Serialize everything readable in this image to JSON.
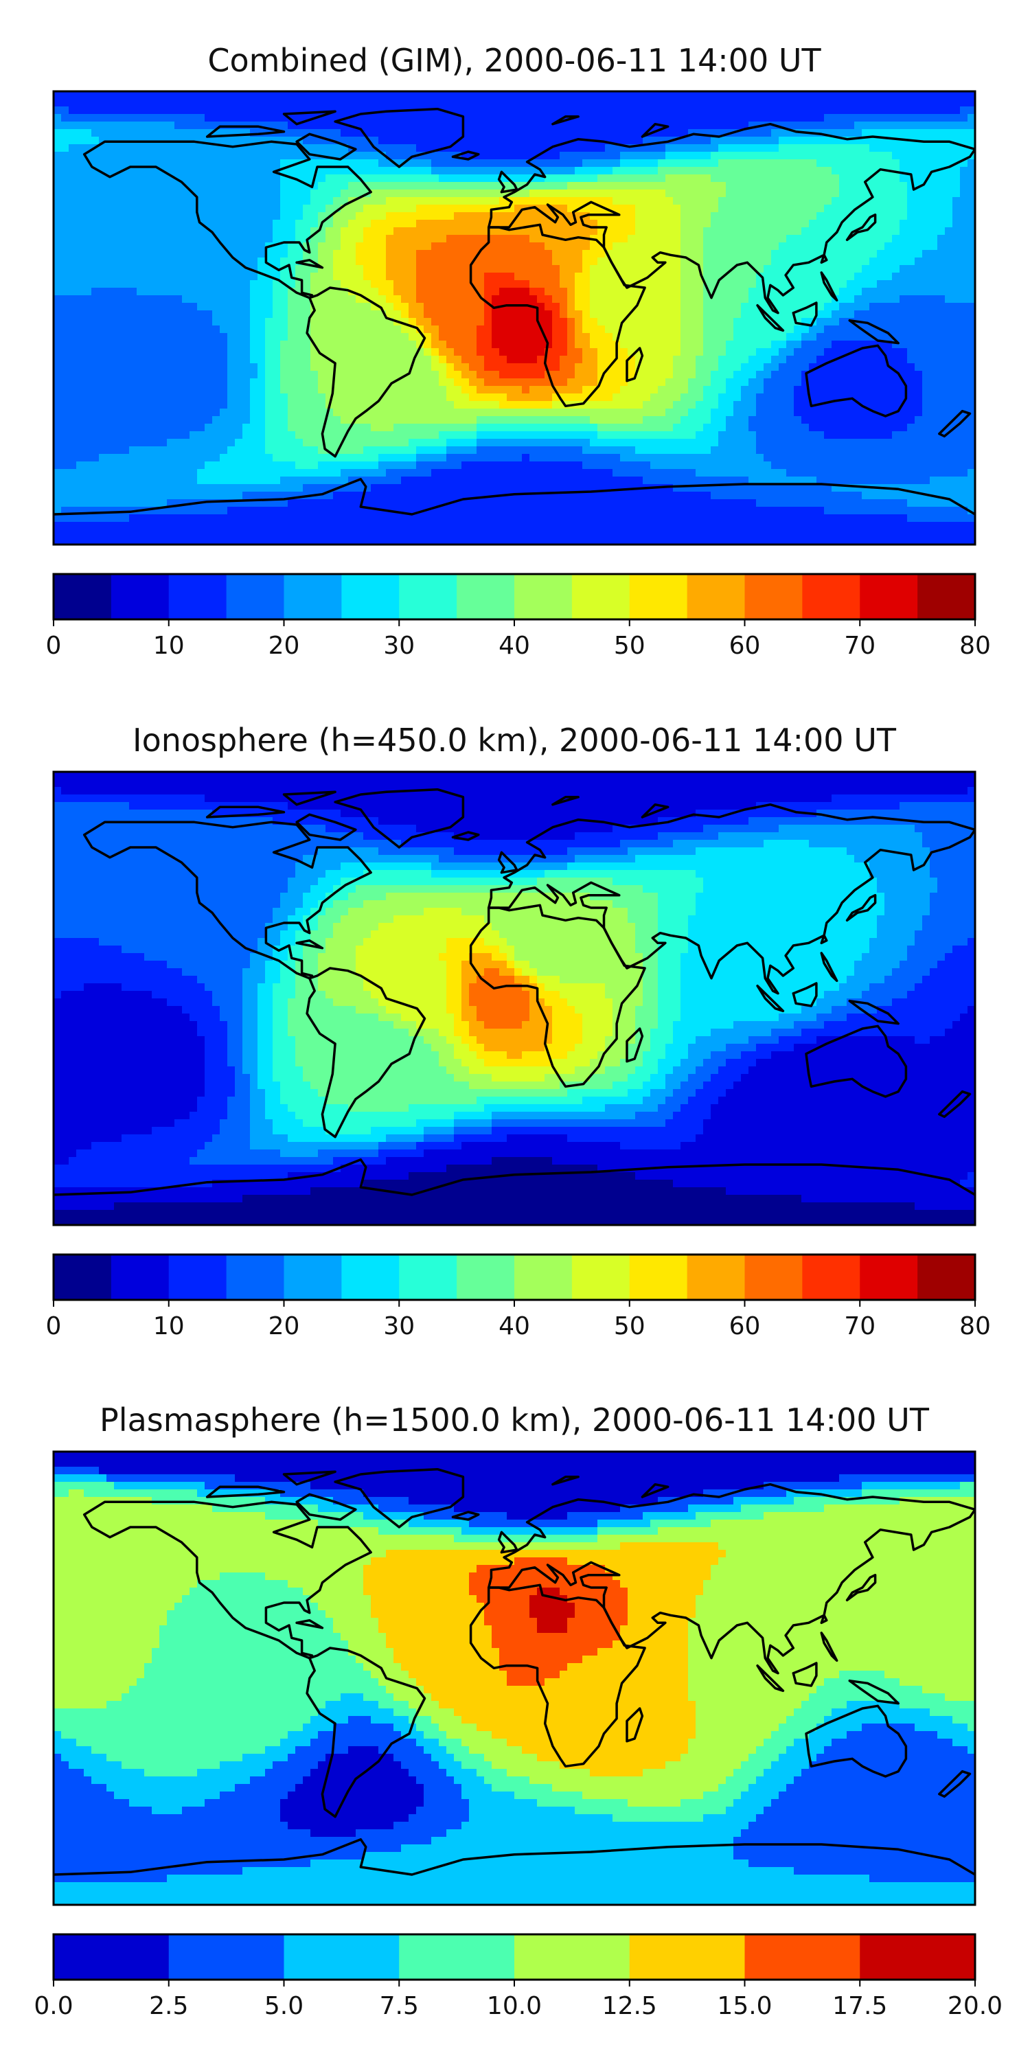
{
  "chart_data": [
    {
      "type": "heatmap",
      "title": "Combined (GIM), 2000-06-11 14:00 UT",
      "xlabel": "",
      "ylabel": "",
      "map": "world equirectangular, coastlines",
      "levels": [
        0,
        5,
        10,
        15,
        20,
        25,
        30,
        35,
        40,
        45,
        50,
        55,
        60,
        65,
        70,
        75,
        80
      ],
      "colorbar_ticks": [
        "0",
        "10",
        "20",
        "30",
        "40",
        "50",
        "60",
        "70",
        "80"
      ],
      "colors": [
        "#00008f",
        "#0000dd",
        "#0024ff",
        "#0064ff",
        "#00a4ff",
        "#00e4ff",
        "#27ffd8",
        "#66ff99",
        "#a4ff5b",
        "#d8ff27",
        "#ffe800",
        "#ffaa00",
        "#ff6c00",
        "#ff3000",
        "#df0000",
        "#9f0000"
      ],
      "range": [
        0,
        80
      ],
      "features": [
        {
          "lon": 0,
          "lat": 2,
          "value": 75
        },
        {
          "lon": -20,
          "lat": 4,
          "value": 62
        },
        {
          "lon": 10,
          "lat": 23,
          "value": 60
        },
        {
          "lon": 40,
          "lat": 12,
          "value": 48
        },
        {
          "lon": -50,
          "lat": -20,
          "value": 40
        },
        {
          "lon": 100,
          "lat": 15,
          "value": 35
        },
        {
          "lon": -130,
          "lat": 40,
          "value": 22
        },
        {
          "lon": -140,
          "lat": -20,
          "value": 18
        },
        {
          "lon": 130,
          "lat": -25,
          "value": 14
        },
        {
          "lon": 0,
          "lat": 80,
          "value": 12
        },
        {
          "lon": 0,
          "lat": -75,
          "value": 12
        }
      ]
    },
    {
      "type": "heatmap",
      "title": "Ionosphere  (h=450.0 km), 2000-06-11 14:00 UT",
      "xlabel": "",
      "ylabel": "",
      "map": "world equirectangular, coastlines",
      "levels": [
        0,
        5,
        10,
        15,
        20,
        25,
        30,
        35,
        40,
        45,
        50,
        55,
        60,
        65,
        70,
        75,
        80
      ],
      "colorbar_ticks": [
        "0",
        "10",
        "20",
        "30",
        "40",
        "50",
        "60",
        "70",
        "80"
      ],
      "colors": [
        "#00008f",
        "#0000dd",
        "#0024ff",
        "#0064ff",
        "#00a4ff",
        "#00e4ff",
        "#27ffd8",
        "#66ff99",
        "#a4ff5b",
        "#d8ff27",
        "#ffe800",
        "#ffaa00",
        "#ff6c00",
        "#ff3000",
        "#df0000",
        "#9f0000"
      ],
      "range": [
        0,
        80
      ],
      "features": [
        {
          "lon": -5,
          "lat": 2,
          "value": 62
        },
        {
          "lon": -40,
          "lat": 0,
          "value": 48
        },
        {
          "lon": 10,
          "lat": 20,
          "value": 42
        },
        {
          "lon": -50,
          "lat": -20,
          "value": 35
        },
        {
          "lon": 100,
          "lat": 15,
          "value": 28
        },
        {
          "lon": -130,
          "lat": 40,
          "value": 16
        },
        {
          "lon": -150,
          "lat": -25,
          "value": 8
        },
        {
          "lon": 120,
          "lat": -40,
          "value": 6
        },
        {
          "lon": 0,
          "lat": 80,
          "value": 8
        },
        {
          "lon": 0,
          "lat": -80,
          "value": 4
        }
      ]
    },
    {
      "type": "heatmap",
      "title": "Plasmasphere (h=1500.0 km), 2000-06-11 14:00 UT",
      "xlabel": "",
      "ylabel": "",
      "map": "world equirectangular, coastlines",
      "levels": [
        0,
        2.5,
        5,
        7.5,
        10,
        12.5,
        15,
        17.5,
        20
      ],
      "colorbar_ticks": [
        "0.0",
        "2.5",
        "5.0",
        "7.5",
        "10.0",
        "12.5",
        "15.0",
        "17.5",
        "20.0"
      ],
      "colors": [
        "#0000d0",
        "#0050ff",
        "#00c8ff",
        "#4cffb0",
        "#b0ff4c",
        "#ffd000",
        "#ff5000",
        "#c80000"
      ],
      "range": [
        0,
        20
      ],
      "features": [
        {
          "lon": 10,
          "lat": 25,
          "value": 18
        },
        {
          "lon": 0,
          "lat": 20,
          "value": 16
        },
        {
          "lon": 50,
          "lat": 25,
          "value": 15
        },
        {
          "lon": -20,
          "lat": 15,
          "value": 13
        },
        {
          "lon": 85,
          "lat": 20,
          "value": 11
        },
        {
          "lon": -150,
          "lat": 15,
          "value": 10
        },
        {
          "lon": 175,
          "lat": 25,
          "value": 12
        },
        {
          "lon": 30,
          "lat": -15,
          "value": 13
        },
        {
          "lon": -100,
          "lat": 0,
          "value": 9
        },
        {
          "lon": -60,
          "lat": -45,
          "value": 2
        },
        {
          "lon": 10,
          "lat": 80,
          "value": 1
        },
        {
          "lon": 150,
          "lat": -50,
          "value": 3
        },
        {
          "lon": 0,
          "lat": -75,
          "value": 6
        }
      ]
    }
  ]
}
